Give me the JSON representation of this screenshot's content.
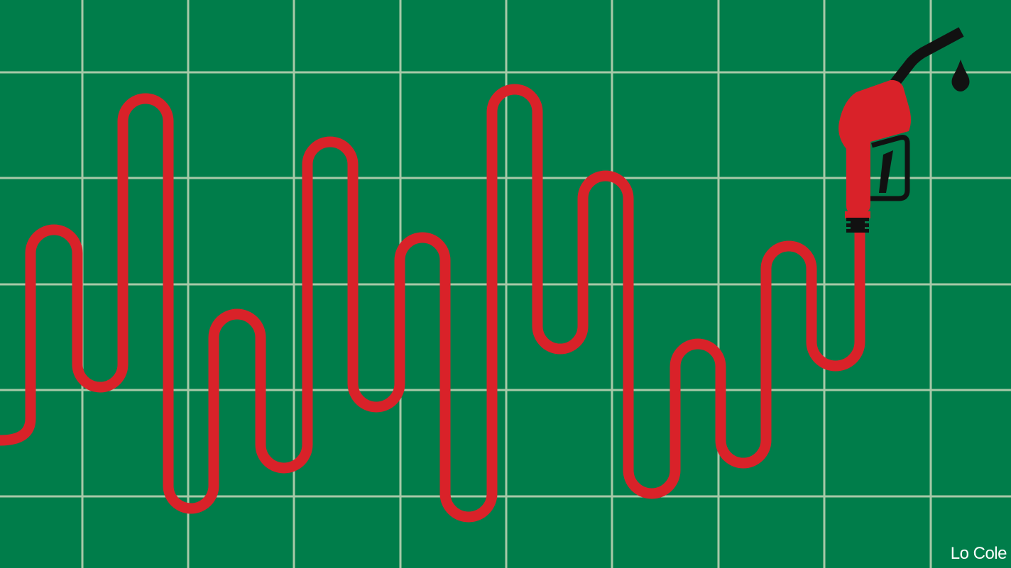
{
  "illustration": {
    "credit": "Lo Cole",
    "colors": {
      "background": "#007d4a",
      "grid": "#a7c9a8",
      "hose": "#d92229",
      "nozzle": "#d92229",
      "spout": "#111111",
      "drop": "#111111"
    },
    "icons": [
      "fuel-nozzle-icon",
      "oil-drop-icon"
    ]
  }
}
